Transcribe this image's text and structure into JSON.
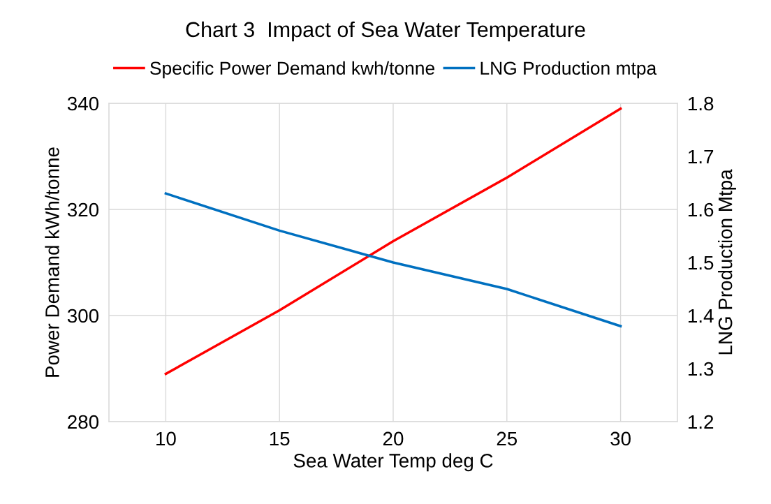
{
  "chart_data": {
    "type": "line",
    "title": "Chart 3  Impact of Sea Water Temperature",
    "xlabel": "Sea Water Temp deg C",
    "ylabel": "Power Demand kWh/tonne",
    "y2label": "LNG Production Mtpa",
    "categories": [
      "10",
      "15",
      "20",
      "25",
      "30"
    ],
    "series": [
      {
        "name": "Specific Power Demand kwh/tonne",
        "color": "#ff0000",
        "values": [
          289,
          301,
          314,
          326,
          339
        ]
      },
      {
        "name": "LNG Production mtpa",
        "color": "#0070c0",
        "values": [
          1.63,
          1.56,
          1.5,
          1.45,
          1.38
        ],
        "axis": "y2"
      }
    ],
    "ylim": [
      280,
      340
    ],
    "yticks": [
      280,
      300,
      320,
      340
    ],
    "y2lim": [
      1.2,
      1.8
    ],
    "y2ticks": [
      {
        "value": 1.2,
        "label": "1.2"
      },
      {
        "value": 1.3,
        "label": "1.3"
      },
      {
        "value": 1.4,
        "label": "1.4"
      },
      {
        "value": 1.5,
        "label": "1.5"
      },
      {
        "value": 1.6,
        "label": "1.6"
      },
      {
        "value": 1.7,
        "label": "1.7"
      },
      {
        "value": 1.8,
        "label": "1.8"
      }
    ],
    "grid": true,
    "legend": "top",
    "marker": "none",
    "line_style": "solid"
  }
}
